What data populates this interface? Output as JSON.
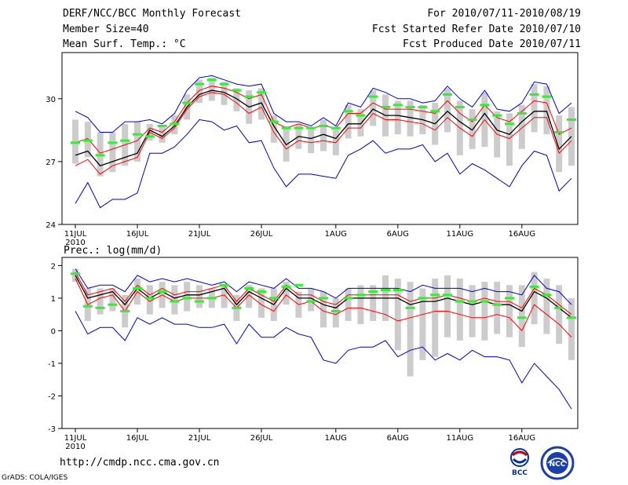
{
  "header": {
    "title": "DERF/NCC/BCC Monthly Forecast",
    "member_size": "Member Size=40",
    "variable1": "Mean Surf. Temp.: °C",
    "for_range": "For 2010/07/11-2010/08/19",
    "fcst_started": "Fcst Started Refer Date 2010/07/10",
    "fcst_produced": "Fcst Produced Date 2010/07/11"
  },
  "footer": {
    "url": "http://cmdp.ncc.cma.gov.cn",
    "grads": "GrADS: COLA/IGES",
    "logo_bcc": "BCC",
    "logo_ncc": "NCC"
  },
  "colors": {
    "mean": "#000000",
    "spread": "#ff0000",
    "extreme": "#0000cc",
    "box": "#cccccc",
    "median": "#33ee33"
  },
  "chart_data": [
    {
      "type": "line",
      "title": "Mean Surf. Temp.: °C",
      "ylim": [
        24,
        32.2
      ],
      "yticks": [
        24,
        27,
        30
      ],
      "x_tick_labels": [
        "11JUL",
        "16JUL",
        "21JUL",
        "26JUL",
        "1AUG",
        "6AUG",
        "11AUG",
        "16AUG"
      ],
      "x_tick_index": [
        0,
        5,
        10,
        15,
        21,
        26,
        31,
        36
      ],
      "year_label": "2010",
      "series": [
        {
          "name": "ensemble mean",
          "color": "#000000",
          "values": [
            27.3,
            27.5,
            26.8,
            27.0,
            27.2,
            27.4,
            28.5,
            28.2,
            28.7,
            29.6,
            30.2,
            30.4,
            30.3,
            30.0,
            29.6,
            29.8,
            28.7,
            27.8,
            28.2,
            28.1,
            28.3,
            28.1,
            28.8,
            28.8,
            29.5,
            29.2,
            29.2,
            29.1,
            29.0,
            28.8,
            29.4,
            28.9,
            28.5,
            29.3,
            28.5,
            28.3,
            28.9,
            29.4,
            29.4,
            27.6,
            28.2
          ]
        },
        {
          "name": "upper spread",
          "color": "#ff0000",
          "values": [
            27.9,
            28.1,
            27.4,
            27.6,
            27.8,
            28.0,
            28.6,
            28.4,
            28.9,
            29.8,
            30.4,
            30.6,
            30.5,
            30.3,
            30.0,
            30.2,
            28.9,
            28.6,
            28.8,
            28.6,
            28.7,
            28.6,
            29.3,
            29.3,
            29.8,
            29.5,
            29.5,
            29.5,
            29.4,
            29.3,
            29.9,
            29.3,
            28.9,
            29.7,
            29.1,
            28.9,
            29.4,
            29.9,
            29.8,
            28.3,
            28.6
          ]
        },
        {
          "name": "lower spread",
          "color": "#ff0000",
          "values": [
            26.8,
            27.1,
            26.4,
            26.8,
            27.0,
            27.2,
            28.4,
            28.1,
            28.6,
            29.5,
            30.1,
            30.3,
            30.2,
            29.8,
            29.3,
            29.6,
            28.4,
            27.6,
            28.0,
            27.9,
            28.0,
            27.9,
            28.6,
            28.6,
            29.3,
            29.0,
            29.0,
            28.9,
            28.8,
            28.5,
            29.1,
            28.6,
            28.2,
            29.0,
            28.3,
            28.1,
            28.6,
            29.1,
            29.1,
            27.4,
            28.0
          ]
        },
        {
          "name": "ensemble max",
          "color": "#0000cc",
          "values": [
            29.4,
            29.1,
            28.4,
            28.4,
            28.9,
            28.9,
            29.0,
            28.8,
            29.3,
            30.4,
            31.0,
            31.1,
            30.9,
            30.7,
            30.6,
            30.7,
            29.3,
            28.9,
            28.9,
            28.7,
            29.1,
            28.7,
            29.8,
            29.6,
            30.5,
            30.3,
            30.0,
            30.0,
            29.8,
            29.9,
            30.6,
            30.0,
            29.6,
            30.4,
            29.5,
            29.4,
            29.8,
            30.8,
            30.7,
            29.3,
            29.8
          ]
        },
        {
          "name": "ensemble min",
          "color": "#0000cc",
          "values": [
            25.0,
            26.0,
            24.8,
            25.2,
            25.2,
            25.5,
            27.4,
            27.4,
            27.7,
            28.3,
            29.0,
            28.9,
            28.5,
            28.7,
            27.9,
            28.0,
            26.7,
            25.8,
            26.4,
            26.4,
            26.3,
            26.2,
            27.3,
            27.6,
            28.0,
            27.4,
            27.6,
            27.6,
            27.8,
            27.0,
            27.4,
            26.4,
            26.9,
            26.6,
            26.2,
            25.8,
            26.8,
            27.5,
            27.3,
            25.6,
            26.2
          ]
        },
        {
          "name": "box top",
          "color": "#cccccc",
          "values": [
            29.0,
            28.9,
            28.4,
            28.4,
            28.8,
            28.9,
            28.8,
            28.7,
            29.2,
            30.2,
            30.9,
            31.0,
            30.8,
            30.5,
            30.4,
            30.5,
            29.2,
            28.7,
            28.8,
            28.6,
            29.0,
            28.6,
            29.7,
            29.5,
            30.4,
            30.2,
            29.9,
            29.9,
            29.7,
            29.8,
            30.5,
            29.9,
            29.5,
            30.3,
            29.4,
            29.3,
            29.7,
            30.7,
            30.6,
            29.2,
            29.6
          ]
        },
        {
          "name": "box bottom",
          "color": "#cccccc",
          "values": [
            26.9,
            27.2,
            26.3,
            26.5,
            26.8,
            27.0,
            28.0,
            27.9,
            28.3,
            29.0,
            29.8,
            29.9,
            29.7,
            29.4,
            28.8,
            29.0,
            27.9,
            27.0,
            27.6,
            27.4,
            27.5,
            27.3,
            28.1,
            28.2,
            28.7,
            28.2,
            28.3,
            28.2,
            28.3,
            27.8,
            28.4,
            27.3,
            27.6,
            27.7,
            27.2,
            26.8,
            27.6,
            28.4,
            28.3,
            26.5,
            26.8
          ]
        },
        {
          "name": "median",
          "color": "#33ee33",
          "values": [
            27.9,
            28.0,
            27.3,
            27.9,
            28.0,
            28.3,
            28.2,
            28.7,
            28.8,
            29.8,
            30.7,
            30.9,
            30.7,
            30.4,
            30.1,
            30.3,
            28.9,
            28.6,
            28.6,
            28.6,
            28.7,
            28.6,
            29.4,
            29.2,
            30.1,
            29.6,
            29.7,
            29.6,
            29.6,
            29.4,
            30.2,
            29.6,
            29.0,
            29.7,
            29.2,
            28.8,
            29.3,
            30.2,
            30.1,
            28.4,
            29.0
          ]
        }
      ]
    },
    {
      "type": "line",
      "title": "Prec.: log(mm/d)",
      "ylim": [
        -3,
        2.25
      ],
      "yticks": [
        -3,
        -2,
        -1,
        0,
        1,
        2
      ],
      "x_tick_labels": [
        "11JUL",
        "16JUL",
        "21JUL",
        "26JUL",
        "1AUG",
        "6AUG",
        "11AUG",
        "16AUG"
      ],
      "x_tick_index": [
        0,
        5,
        10,
        15,
        21,
        26,
        31,
        36
      ],
      "year_label": "2010",
      "series": [
        {
          "name": "ensemble mean",
          "color": "#000000",
          "values": [
            1.7,
            1.0,
            1.1,
            1.2,
            0.8,
            1.3,
            1.0,
            1.2,
            1.0,
            1.1,
            1.1,
            1.2,
            1.3,
            0.8,
            1.2,
            1.0,
            0.8,
            1.3,
            1.0,
            1.0,
            0.8,
            0.7,
            1.0,
            1.0,
            1.0,
            1.0,
            1.0,
            0.8,
            0.9,
            0.9,
            1.0,
            0.9,
            0.8,
            0.9,
            0.8,
            0.8,
            0.6,
            1.2,
            1.0,
            0.7,
            0.4
          ]
        },
        {
          "name": "upper spread",
          "color": "#ff0000",
          "values": [
            1.8,
            1.1,
            1.2,
            1.3,
            0.9,
            1.4,
            1.1,
            1.3,
            1.1,
            1.2,
            1.2,
            1.3,
            1.4,
            0.9,
            1.3,
            1.1,
            0.9,
            1.4,
            1.1,
            1.1,
            0.9,
            0.8,
            1.1,
            1.1,
            1.1,
            1.1,
            1.1,
            0.9,
            1.0,
            1.0,
            1.1,
            1.0,
            0.9,
            1.0,
            0.9,
            0.9,
            0.7,
            1.3,
            1.1,
            0.8,
            0.5
          ]
        },
        {
          "name": "lower spread",
          "color": "#ff0000",
          "values": [
            1.6,
            0.8,
            1.0,
            1.1,
            0.6,
            1.2,
            0.9,
            1.1,
            0.9,
            1.0,
            1.0,
            1.0,
            1.1,
            0.7,
            1.1,
            0.8,
            0.6,
            1.1,
            0.8,
            0.9,
            0.6,
            0.5,
            0.7,
            0.7,
            0.6,
            0.5,
            0.3,
            0.4,
            0.5,
            0.6,
            0.6,
            0.5,
            0.4,
            0.4,
            0.5,
            0.4,
            0.0,
            0.8,
            0.5,
            0.2,
            -0.2
          ]
        },
        {
          "name": "ensemble max",
          "color": "#0000cc",
          "values": [
            1.9,
            1.3,
            1.4,
            1.4,
            1.2,
            1.7,
            1.5,
            1.6,
            1.5,
            1.6,
            1.5,
            1.4,
            1.5,
            1.2,
            1.5,
            1.4,
            1.3,
            1.6,
            1.3,
            1.3,
            1.2,
            1.0,
            1.3,
            1.3,
            1.3,
            1.3,
            1.3,
            1.2,
            1.4,
            1.3,
            1.3,
            1.3,
            1.2,
            1.3,
            1.2,
            1.2,
            1.1,
            1.7,
            1.3,
            1.2,
            0.8
          ]
        },
        {
          "name": "ensemble min",
          "color": "#0000cc",
          "values": [
            0.6,
            -0.1,
            0.1,
            0.1,
            -0.3,
            0.4,
            0.2,
            0.4,
            0.2,
            0.2,
            0.1,
            0.1,
            0.2,
            -0.4,
            0.2,
            -0.2,
            -0.2,
            0.1,
            -0.1,
            -0.2,
            -0.9,
            -1.0,
            -0.6,
            -0.5,
            -0.5,
            -0.3,
            -0.8,
            -0.6,
            -0.5,
            -0.9,
            -0.7,
            -0.9,
            -0.6,
            -0.8,
            -0.8,
            -0.9,
            -1.6,
            -1.0,
            -1.4,
            -1.8,
            -2.4
          ]
        },
        {
          "name": "box top",
          "color": "#cccccc",
          "values": [
            1.9,
            1.3,
            1.3,
            1.3,
            1.1,
            1.6,
            1.4,
            1.5,
            1.4,
            1.5,
            1.4,
            1.3,
            1.4,
            1.1,
            1.4,
            1.3,
            1.3,
            1.5,
            1.2,
            1.3,
            1.2,
            1.0,
            1.3,
            1.4,
            1.4,
            1.7,
            1.6,
            1.5,
            1.3,
            1.6,
            1.7,
            1.6,
            1.4,
            1.5,
            1.5,
            1.4,
            1.4,
            1.8,
            1.6,
            1.4,
            1.0
          ]
        },
        {
          "name": "box bottom",
          "color": "#cccccc",
          "values": [
            1.5,
            0.3,
            0.5,
            0.6,
            0.1,
            0.8,
            0.5,
            0.7,
            0.5,
            0.6,
            0.7,
            0.7,
            0.7,
            0.3,
            0.7,
            0.4,
            0.3,
            0.8,
            0.4,
            0.6,
            0.1,
            0.1,
            0.3,
            0.2,
            0.3,
            0.3,
            -0.6,
            -1.4,
            -0.9,
            -0.8,
            -0.2,
            -0.3,
            -0.2,
            -0.3,
            -0.1,
            -0.2,
            -0.5,
            0.2,
            -0.1,
            -0.4,
            -0.9
          ]
        },
        {
          "name": "median",
          "color": "#33ee33",
          "values": [
            1.75,
            0.75,
            0.7,
            0.8,
            0.6,
            1.3,
            1.0,
            1.2,
            0.9,
            1.0,
            0.9,
            1.0,
            1.4,
            0.7,
            1.3,
            1.2,
            1.0,
            1.35,
            1.4,
            0.9,
            1.0,
            0.6,
            1.0,
            1.1,
            1.2,
            1.25,
            1.25,
            0.7,
            1.0,
            1.1,
            1.1,
            0.9,
            0.9,
            0.9,
            0.8,
            1.0,
            0.4,
            1.35,
            1.1,
            0.7,
            0.4
          ]
        }
      ]
    }
  ]
}
